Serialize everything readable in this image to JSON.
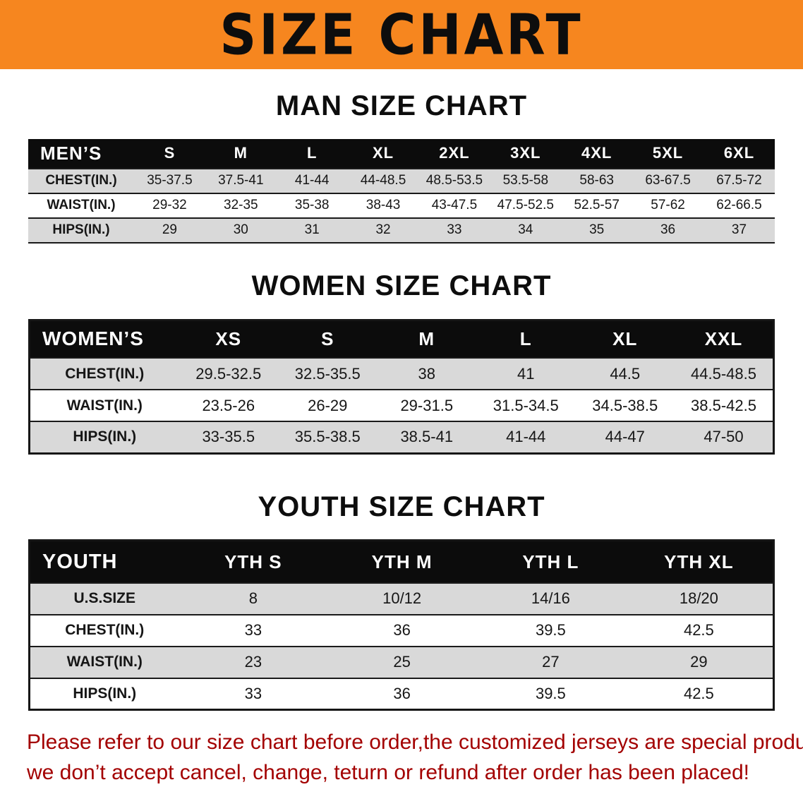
{
  "banner": {
    "title": "SIZE CHART"
  },
  "colors": {
    "banner_bg": "#f6861f",
    "header_bg": "#0c0c0c",
    "row_alt": "#d9d9d9",
    "disclaimer_red": "#a30000"
  },
  "sections": [
    {
      "id": "men",
      "heading": "MAN SIZE CHART",
      "table": {
        "header": [
          "MEN’S",
          "S",
          "M",
          "L",
          "XL",
          "2XL",
          "3XL",
          "4XL",
          "5XL",
          "6XL"
        ],
        "rows": [
          [
            "CHEST(IN.)",
            "35-37.5",
            "37.5-41",
            "41-44",
            "44-48.5",
            "48.5-53.5",
            "53.5-58",
            "58-63",
            "63-67.5",
            "67.5-72"
          ],
          [
            "WAIST(IN.)",
            "29-32",
            "32-35",
            "35-38",
            "38-43",
            "43-47.5",
            "47.5-52.5",
            "52.5-57",
            "57-62",
            "62-66.5"
          ],
          [
            "HIPS(IN.)",
            "29",
            "30",
            "31",
            "32",
            "33",
            "34",
            "35",
            "36",
            "37"
          ]
        ]
      }
    },
    {
      "id": "women",
      "heading": "WOMEN SIZE CHART",
      "table": {
        "header": [
          "WOMEN’S",
          "XS",
          "S",
          "M",
          "L",
          "XL",
          "XXL"
        ],
        "rows": [
          [
            "CHEST(IN.)",
            "29.5-32.5",
            "32.5-35.5",
            "38",
            "41",
            "44.5",
            "44.5-48.5"
          ],
          [
            "WAIST(IN.)",
            "23.5-26",
            "26-29",
            "29-31.5",
            "31.5-34.5",
            "34.5-38.5",
            "38.5-42.5"
          ],
          [
            "HIPS(IN.)",
            "33-35.5",
            "35.5-38.5",
            "38.5-41",
            "41-44",
            "44-47",
            "47-50"
          ]
        ]
      }
    },
    {
      "id": "youth",
      "heading": "YOUTH SIZE CHART",
      "table": {
        "header": [
          "YOUTH",
          "YTH S",
          "YTH M",
          "YTH L",
          "YTH XL"
        ],
        "rows": [
          [
            "U.S.SIZE",
            "8",
            "10/12",
            "14/16",
            "18/20"
          ],
          [
            "CHEST(IN.)",
            "33",
            "36",
            "39.5",
            "42.5"
          ],
          [
            "WAIST(IN.)",
            "23",
            "25",
            "27",
            "29"
          ],
          [
            "HIPS(IN.)",
            "33",
            "36",
            "39.5",
            "42.5"
          ]
        ]
      }
    }
  ],
  "disclaimer": {
    "line1": "Please refer to our size chart before order,the customized jerseys are special products,",
    "line2": "we don’t accept cancel, change, teturn or refund after order has been placed!"
  }
}
